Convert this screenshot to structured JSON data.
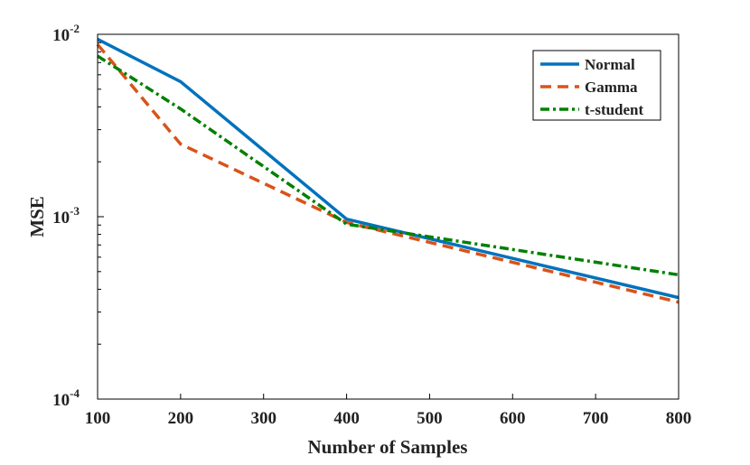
{
  "chart_data": {
    "type": "line",
    "title": "",
    "xlabel": "Number of Samples",
    "ylabel": "MSE",
    "yscale": "log",
    "xlim": [
      100,
      800
    ],
    "ylim": [
      0.0001,
      0.01
    ],
    "x_ticks": [
      "100",
      "200",
      "300",
      "400",
      "500",
      "600",
      "700",
      "800"
    ],
    "y_ticks": [
      {
        "base": "10",
        "exp": "-4",
        "value": 0.0001
      },
      {
        "base": "10",
        "exp": "-3",
        "value": 0.001
      },
      {
        "base": "10",
        "exp": "-2",
        "value": 0.01
      }
    ],
    "x": [
      100,
      200,
      400,
      800
    ],
    "legend_position": "top-right",
    "series": [
      {
        "name": "Normal",
        "values": [
          0.0094,
          0.0055,
          0.00097,
          0.00036
        ],
        "color": "#0072BD",
        "style": "solid"
      },
      {
        "name": "Gamma",
        "values": [
          0.0088,
          0.0025,
          0.00093,
          0.00034
        ],
        "color": "#D95319",
        "style": "dashed"
      },
      {
        "name": "t-student",
        "values": [
          0.0076,
          0.0039,
          0.00091,
          0.00048
        ],
        "color": "#008000",
        "style": "dashdot"
      }
    ]
  }
}
